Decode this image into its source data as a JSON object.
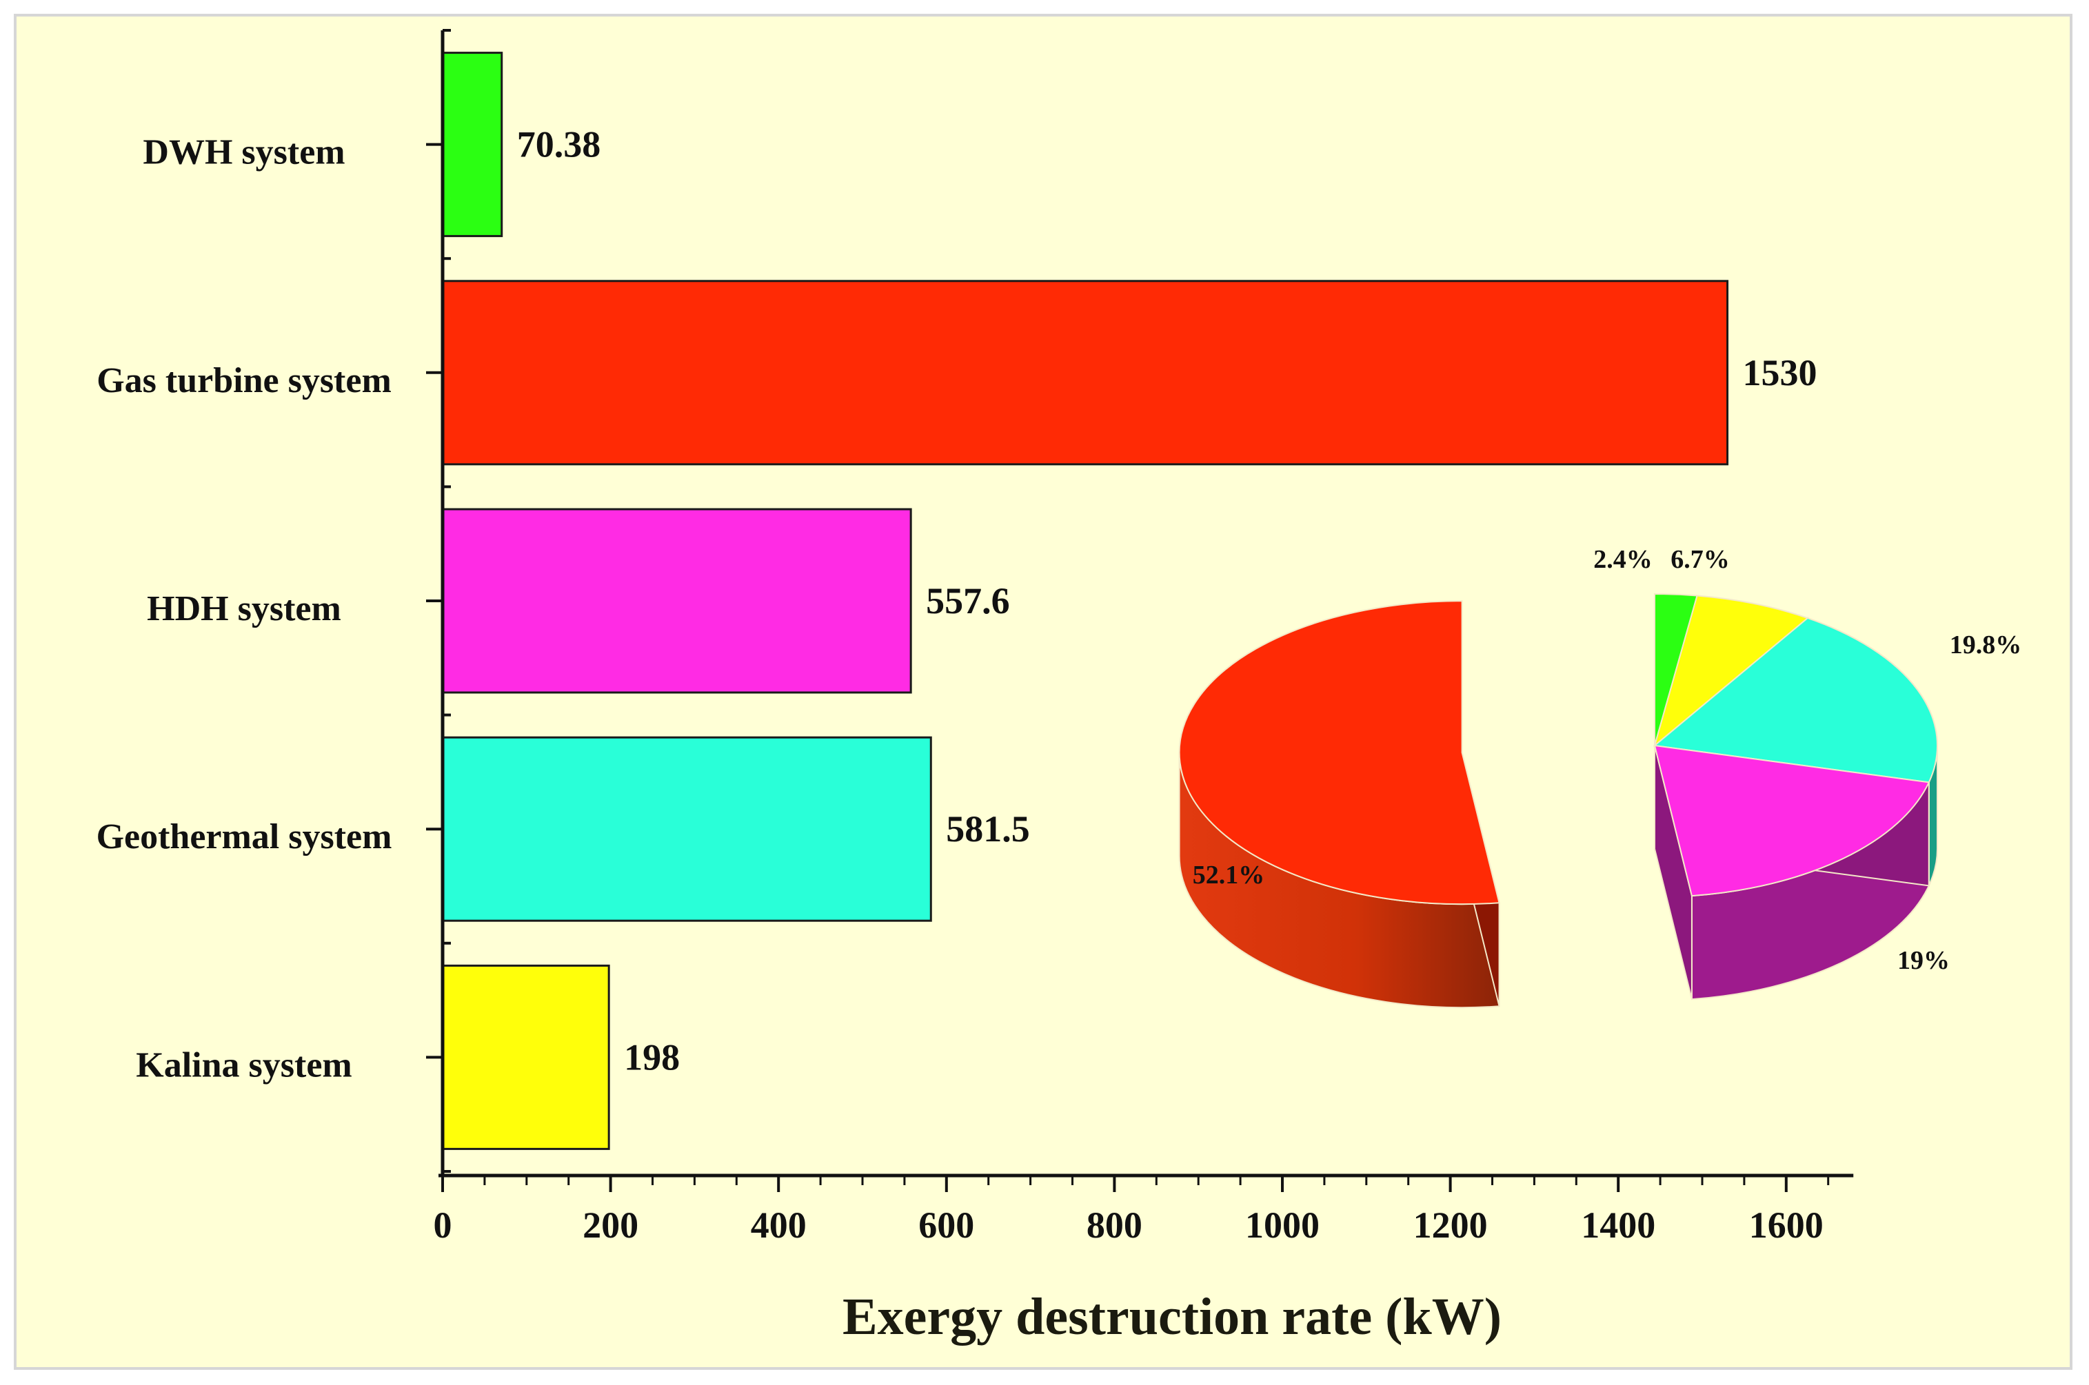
{
  "chart_data": {
    "type": "bar",
    "orientation": "horizontal",
    "categories": [
      "DWH system",
      "Gas turbine system",
      "HDH system",
      "Geothermal system",
      "Kalina system"
    ],
    "values": [
      70.38,
      1530,
      557.6,
      581.5,
      198
    ],
    "value_labels": [
      "70.38",
      "1530",
      "557.6",
      "581.5",
      "198"
    ],
    "colors": [
      "#2bff12",
      "#ff2a05",
      "#ff2be4",
      "#29ffd8",
      "#ffff0a"
    ],
    "xlabel": "Exergy destruction rate (kW)",
    "xlim": [
      0,
      1680
    ],
    "xticks": [
      0,
      200,
      400,
      600,
      800,
      1000,
      1200,
      1400,
      1600
    ],
    "xtick_labels": [
      "0",
      "200",
      "400",
      "600",
      "800",
      "1000",
      "1200",
      "1400",
      "1600"
    ],
    "inset_pie": {
      "type": "pie",
      "slices": [
        {
          "name": "DWH system",
          "value": 2.4,
          "label": "2.4%",
          "color": "#2bff12"
        },
        {
          "name": "Kalina system",
          "value": 6.7,
          "label": "6.7%",
          "color": "#ffff0a"
        },
        {
          "name": "Geothermal system",
          "value": 19.8,
          "label": "19.8%",
          "color": "#29ffd8"
        },
        {
          "name": "HDH system",
          "value": 19,
          "label": "19%",
          "color": "#ff2be4"
        },
        {
          "name": "Gas turbine system",
          "value": 52.1,
          "label": "52.1%",
          "color": "#ff2a05"
        }
      ]
    }
  }
}
